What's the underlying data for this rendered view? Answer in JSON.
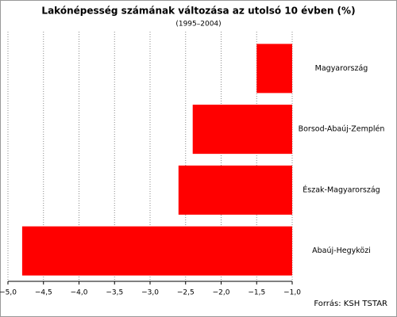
{
  "chart_data": {
    "type": "hbar",
    "title": "Lakónépesség számának változása az utolsó 10 évben (%)",
    "subtitle": "(1995–2004)",
    "source": "Forrás: KSH TSTAR",
    "categories": [
      "Magyarország",
      "Borsod-Abaúj-Zemplén",
      "Észak-Magyarország",
      "Abaúj-Hegyközi"
    ],
    "values": [
      -1.5,
      -2.4,
      -2.6,
      -4.8
    ],
    "color": "#ff0000",
    "xlim": [
      -5.0,
      -1.0
    ],
    "xticks": [
      {
        "value": -5.0,
        "label": "−5,0"
      },
      {
        "value": -4.5,
        "label": "−4,5"
      },
      {
        "value": -4.0,
        "label": "−4,0"
      },
      {
        "value": -3.5,
        "label": "−3,5"
      },
      {
        "value": -3.0,
        "label": "−3,0"
      },
      {
        "value": -2.5,
        "label": "−2,5"
      },
      {
        "value": -2.0,
        "label": "−2,0"
      },
      {
        "value": -1.5,
        "label": "−1,5"
      },
      {
        "value": -1.0,
        "label": "−1,0"
      }
    ],
    "grid": true
  }
}
